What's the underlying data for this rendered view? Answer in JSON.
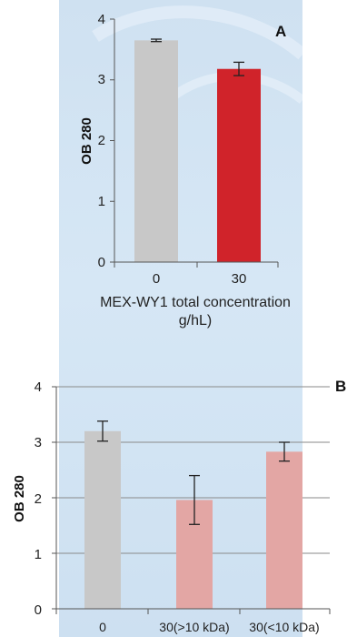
{
  "chart_data": [
    {
      "type": "bar",
      "panel_letter": "A",
      "categories": [
        "0",
        "30"
      ],
      "values": [
        3.65,
        3.18
      ],
      "errors": [
        0.02,
        0.11
      ],
      "colors": [
        "#c8c8c8",
        "#d0232a"
      ],
      "ylabel": "OB 280",
      "xlabel": "MEX-WY1 total concentration g/hL)",
      "xlabel_lines": [
        "MEX-WY1 total concentration",
        "g/hL)"
      ],
      "ylim": [
        0,
        4
      ],
      "yticks": [
        "0",
        "1",
        "2",
        "3",
        "4"
      ],
      "grid": false
    },
    {
      "type": "bar",
      "panel_letter": "B",
      "categories": [
        "0",
        "30(>10 kDa)",
        "30(<10 kDa)"
      ],
      "values": [
        3.2,
        1.96,
        2.83
      ],
      "errors": [
        0.18,
        0.44,
        0.17
      ],
      "colors": [
        "#c8c8c8",
        "#e3a6a4",
        "#e3a6a4"
      ],
      "ylabel": "OB 280",
      "ylim": [
        0,
        4
      ],
      "yticks": [
        "0",
        "1",
        "2",
        "3",
        "4"
      ],
      "grid": true
    }
  ]
}
